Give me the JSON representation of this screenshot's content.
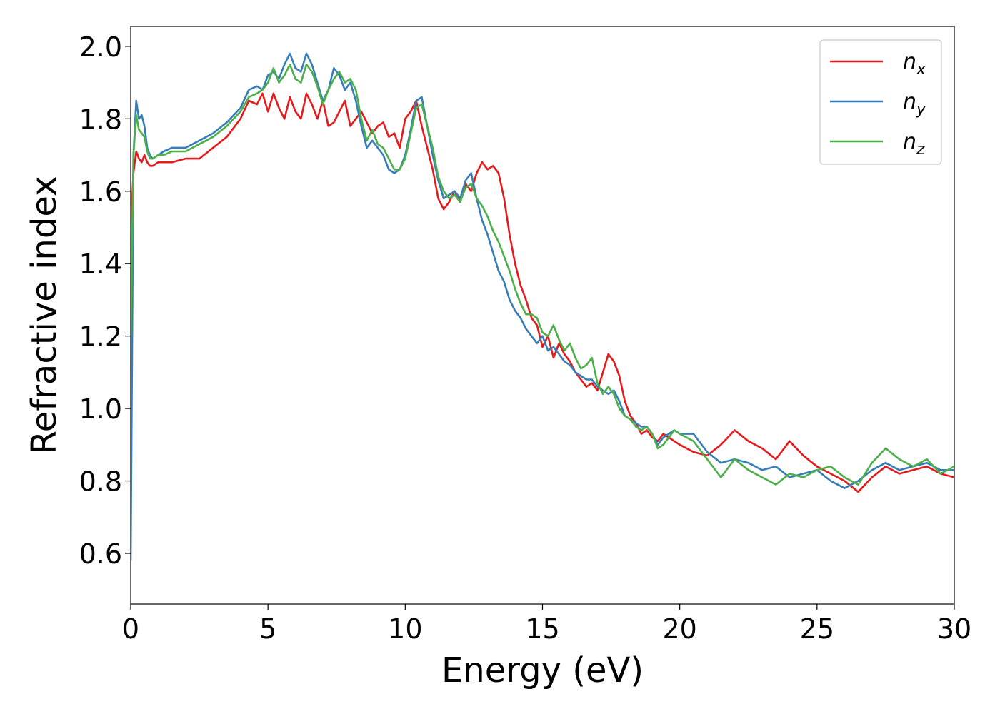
{
  "chart_data": {
    "type": "line",
    "xlabel": "Energy (eV)",
    "ylabel": "Refractive index",
    "xlim": [
      0,
      30
    ],
    "ylim": [
      0.46,
      2.055
    ],
    "xticks": [
      0,
      5,
      10,
      15,
      20,
      25,
      30
    ],
    "xtick_labels": [
      "0",
      "5",
      "10",
      "15",
      "20",
      "25",
      "30"
    ],
    "yticks": [
      0.6,
      0.8,
      1.0,
      1.2,
      1.4,
      1.6,
      1.8,
      2.0
    ],
    "ytick_labels": [
      "0.6",
      "0.8",
      "1.0",
      "1.2",
      "1.4",
      "1.6",
      "1.8",
      "2.0"
    ],
    "grid": false,
    "legend_position": "top-right",
    "series": [
      {
        "name": "n",
        "subscript": "x",
        "color": "#e41a1c",
        "x": [
          0,
          0.1,
          0.2,
          0.3,
          0.4,
          0.5,
          0.6,
          0.7,
          0.8,
          1.0,
          1.2,
          1.5,
          2.0,
          2.5,
          3.0,
          3.5,
          4.0,
          4.3,
          4.6,
          4.8,
          5.0,
          5.2,
          5.4,
          5.6,
          5.8,
          6.0,
          6.2,
          6.4,
          6.6,
          6.8,
          7.0,
          7.2,
          7.4,
          7.6,
          7.8,
          8.0,
          8.2,
          8.4,
          8.6,
          8.8,
          9.0,
          9.2,
          9.4,
          9.6,
          9.8,
          10.0,
          10.2,
          10.4,
          10.6,
          10.8,
          11.0,
          11.2,
          11.4,
          11.6,
          11.8,
          12.0,
          12.2,
          12.4,
          12.6,
          12.8,
          13.0,
          13.2,
          13.4,
          13.6,
          13.8,
          14.0,
          14.2,
          14.4,
          14.6,
          14.8,
          15.0,
          15.2,
          15.4,
          15.6,
          15.8,
          16.0,
          16.2,
          16.4,
          16.6,
          16.8,
          17.0,
          17.2,
          17.4,
          17.6,
          17.8,
          18.0,
          18.2,
          18.4,
          18.6,
          18.8,
          19.0,
          19.2,
          19.4,
          19.6,
          19.8,
          20.0,
          20.5,
          21.0,
          21.5,
          22.0,
          22.5,
          23.0,
          23.5,
          24.0,
          24.5,
          25.0,
          25.5,
          26.0,
          26.5,
          27.0,
          27.5,
          28.0,
          28.5,
          29.0,
          29.5,
          30.0
        ],
        "y": [
          1.5,
          1.65,
          1.71,
          1.69,
          1.68,
          1.7,
          1.68,
          1.67,
          1.67,
          1.68,
          1.68,
          1.68,
          1.69,
          1.69,
          1.72,
          1.75,
          1.8,
          1.85,
          1.84,
          1.87,
          1.82,
          1.87,
          1.83,
          1.8,
          1.86,
          1.82,
          1.8,
          1.87,
          1.84,
          1.8,
          1.85,
          1.78,
          1.79,
          1.82,
          1.85,
          1.78,
          1.8,
          1.82,
          1.79,
          1.76,
          1.78,
          1.79,
          1.75,
          1.76,
          1.72,
          1.8,
          1.82,
          1.85,
          1.78,
          1.72,
          1.66,
          1.58,
          1.55,
          1.57,
          1.6,
          1.57,
          1.62,
          1.6,
          1.65,
          1.68,
          1.66,
          1.67,
          1.65,
          1.58,
          1.48,
          1.4,
          1.34,
          1.3,
          1.25,
          1.23,
          1.17,
          1.2,
          1.14,
          1.18,
          1.15,
          1.13,
          1.1,
          1.08,
          1.06,
          1.07,
          1.05,
          1.1,
          1.15,
          1.13,
          1.09,
          1.02,
          0.98,
          0.96,
          0.93,
          0.94,
          0.92,
          0.91,
          0.93,
          0.92,
          0.91,
          0.9,
          0.88,
          0.87,
          0.9,
          0.94,
          0.91,
          0.89,
          0.86,
          0.91,
          0.87,
          0.84,
          0.82,
          0.8,
          0.77,
          0.81,
          0.84,
          0.82,
          0.83,
          0.84,
          0.82,
          0.81
        ]
      },
      {
        "name": "n",
        "subscript": "y",
        "color": "#377eb8",
        "x": [
          0,
          0.1,
          0.2,
          0.3,
          0.4,
          0.5,
          0.6,
          0.7,
          0.8,
          1.0,
          1.2,
          1.5,
          2.0,
          2.5,
          3.0,
          3.5,
          4.0,
          4.3,
          4.6,
          4.8,
          5.0,
          5.2,
          5.4,
          5.6,
          5.8,
          6.0,
          6.2,
          6.4,
          6.6,
          6.8,
          7.0,
          7.2,
          7.4,
          7.6,
          7.8,
          8.0,
          8.2,
          8.4,
          8.6,
          8.8,
          9.0,
          9.2,
          9.4,
          9.6,
          9.8,
          10.0,
          10.2,
          10.4,
          10.6,
          10.8,
          11.0,
          11.2,
          11.4,
          11.6,
          11.8,
          12.0,
          12.2,
          12.4,
          12.6,
          12.8,
          13.0,
          13.2,
          13.4,
          13.6,
          13.8,
          14.0,
          14.2,
          14.4,
          14.6,
          14.8,
          15.0,
          15.2,
          15.4,
          15.6,
          15.8,
          16.0,
          16.2,
          16.4,
          16.6,
          16.8,
          17.0,
          17.2,
          17.4,
          17.6,
          17.8,
          18.0,
          18.2,
          18.4,
          18.6,
          18.8,
          19.0,
          19.2,
          19.4,
          19.6,
          19.8,
          20.0,
          20.5,
          21.0,
          21.5,
          22.0,
          22.5,
          23.0,
          23.5,
          24.0,
          24.5,
          25.0,
          25.5,
          26.0,
          26.5,
          27.0,
          27.5,
          28.0,
          28.5,
          29.0,
          29.5,
          30.0
        ],
        "y": [
          0.58,
          1.7,
          1.85,
          1.8,
          1.81,
          1.78,
          1.72,
          1.7,
          1.69,
          1.7,
          1.71,
          1.72,
          1.72,
          1.74,
          1.76,
          1.79,
          1.83,
          1.88,
          1.89,
          1.88,
          1.92,
          1.93,
          1.91,
          1.95,
          1.98,
          1.94,
          1.93,
          1.98,
          1.95,
          1.9,
          1.85,
          1.88,
          1.94,
          1.92,
          1.88,
          1.9,
          1.85,
          1.78,
          1.72,
          1.74,
          1.72,
          1.7,
          1.66,
          1.65,
          1.66,
          1.7,
          1.77,
          1.85,
          1.86,
          1.78,
          1.7,
          1.63,
          1.58,
          1.59,
          1.6,
          1.58,
          1.63,
          1.65,
          1.58,
          1.52,
          1.48,
          1.43,
          1.38,
          1.35,
          1.3,
          1.27,
          1.25,
          1.22,
          1.2,
          1.18,
          1.2,
          1.16,
          1.17,
          1.15,
          1.13,
          1.12,
          1.1,
          1.09,
          1.08,
          1.08,
          1.06,
          1.05,
          1.04,
          1.05,
          1.02,
          0.98,
          0.97,
          0.96,
          0.95,
          0.95,
          0.93,
          0.9,
          0.92,
          0.93,
          0.94,
          0.93,
          0.93,
          0.88,
          0.85,
          0.86,
          0.85,
          0.83,
          0.84,
          0.81,
          0.82,
          0.83,
          0.8,
          0.78,
          0.8,
          0.83,
          0.85,
          0.83,
          0.84,
          0.85,
          0.83,
          0.83
        ]
      },
      {
        "name": "n",
        "subscript": "z",
        "color": "#4daf4a",
        "x": [
          0,
          0.1,
          0.2,
          0.3,
          0.4,
          0.5,
          0.6,
          0.7,
          0.8,
          1.0,
          1.2,
          1.5,
          2.0,
          2.5,
          3.0,
          3.5,
          4.0,
          4.3,
          4.6,
          4.8,
          5.0,
          5.2,
          5.4,
          5.6,
          5.8,
          6.0,
          6.2,
          6.4,
          6.6,
          6.8,
          7.0,
          7.2,
          7.4,
          7.6,
          7.8,
          8.0,
          8.2,
          8.4,
          8.6,
          8.8,
          9.0,
          9.2,
          9.4,
          9.6,
          9.8,
          10.0,
          10.2,
          10.4,
          10.6,
          10.8,
          11.0,
          11.2,
          11.4,
          11.6,
          11.8,
          12.0,
          12.2,
          12.4,
          12.6,
          12.8,
          13.0,
          13.2,
          13.4,
          13.6,
          13.8,
          14.0,
          14.2,
          14.4,
          14.6,
          14.8,
          15.0,
          15.2,
          15.4,
          15.6,
          15.8,
          16.0,
          16.2,
          16.4,
          16.6,
          16.8,
          17.0,
          17.2,
          17.4,
          17.6,
          17.8,
          18.0,
          18.2,
          18.4,
          18.6,
          18.8,
          19.0,
          19.2,
          19.4,
          19.6,
          19.8,
          20.0,
          20.5,
          21.0,
          21.5,
          22.0,
          22.5,
          23.0,
          23.5,
          24.0,
          24.5,
          25.0,
          25.5,
          26.0,
          26.5,
          27.0,
          27.5,
          28.0,
          28.5,
          29.0,
          29.5,
          30.0
        ],
        "y": [
          1.2,
          1.7,
          1.81,
          1.77,
          1.76,
          1.75,
          1.71,
          1.69,
          1.69,
          1.7,
          1.7,
          1.71,
          1.71,
          1.73,
          1.75,
          1.78,
          1.82,
          1.86,
          1.87,
          1.88,
          1.9,
          1.94,
          1.9,
          1.92,
          1.95,
          1.91,
          1.9,
          1.95,
          1.93,
          1.89,
          1.84,
          1.88,
          1.91,
          1.93,
          1.9,
          1.91,
          1.88,
          1.8,
          1.74,
          1.77,
          1.73,
          1.72,
          1.69,
          1.66,
          1.66,
          1.69,
          1.76,
          1.83,
          1.84,
          1.78,
          1.72,
          1.64,
          1.6,
          1.58,
          1.59,
          1.57,
          1.61,
          1.62,
          1.58,
          1.56,
          1.53,
          1.49,
          1.46,
          1.42,
          1.38,
          1.33,
          1.29,
          1.26,
          1.26,
          1.25,
          1.21,
          1.2,
          1.23,
          1.19,
          1.16,
          1.18,
          1.14,
          1.11,
          1.12,
          1.14,
          1.07,
          1.04,
          1.06,
          1.04,
          1.0,
          0.98,
          0.97,
          0.95,
          0.94,
          0.95,
          0.93,
          0.89,
          0.9,
          0.92,
          0.94,
          0.93,
          0.91,
          0.86,
          0.81,
          0.86,
          0.83,
          0.81,
          0.79,
          0.82,
          0.81,
          0.83,
          0.84,
          0.81,
          0.79,
          0.85,
          0.89,
          0.86,
          0.84,
          0.86,
          0.82,
          0.84
        ]
      }
    ]
  }
}
